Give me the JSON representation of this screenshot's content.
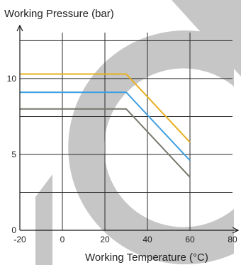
{
  "chart_data": {
    "type": "line",
    "xlabel": "Working Temperature (°C)",
    "ylabel": "Working Pressure (bar)",
    "xlim": [
      -20,
      80
    ],
    "ylim": [
      0,
      13.5
    ],
    "x_ticks": [
      "-20",
      "0",
      "20",
      "40",
      "60",
      "80"
    ],
    "y_ticks": [
      "0",
      "5",
      "10"
    ],
    "x_grid": [
      0,
      20,
      40,
      60
    ],
    "y_grid": [
      2.5,
      5,
      7.5,
      10,
      12.5
    ],
    "grid": true,
    "legend": "none",
    "series": [
      {
        "x": [
          -20,
          30,
          60
        ],
        "y": [
          10.3,
          10.3,
          5.8
        ],
        "color": "#e8b020"
      },
      {
        "x": [
          -20,
          30,
          60
        ],
        "y": [
          9.1,
          9.1,
          4.6
        ],
        "color": "#3c9ee0"
      },
      {
        "x": [
          -20,
          30,
          60
        ],
        "y": [
          8.0,
          8.0,
          3.5
        ],
        "color": "#77776c"
      }
    ]
  },
  "colors": {
    "axis": "#1a1a1a",
    "grid": "#2a2a2a",
    "watermark": "#c6c6c6"
  }
}
